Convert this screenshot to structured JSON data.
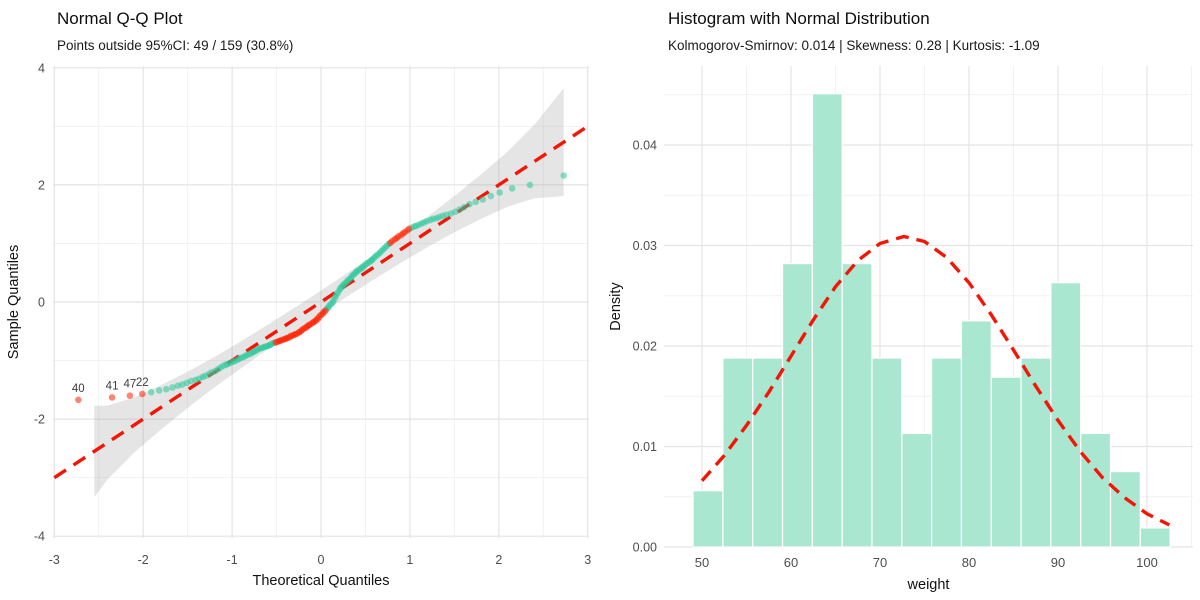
{
  "chart_data": [
    {
      "type": "scatter",
      "name": "qq-plot",
      "title": "Normal Q-Q Plot",
      "subtitle": "Points outside 95%CI: 49 / 159 (30.8%)",
      "xlabel": "Theoretical Quantiles",
      "ylabel": "Sample Quantiles",
      "xlim": [
        -3,
        3
      ],
      "ylim": [
        -4,
        4
      ],
      "x_ticks": [
        "-3",
        "-2",
        "-1",
        "0",
        "1",
        "2",
        "3"
      ],
      "x_tick_values": [
        -3,
        -2,
        -1,
        0,
        1,
        2,
        3
      ],
      "x_minor_values": [
        -2.5,
        -1.5,
        -0.5,
        0.5,
        1.5,
        2.5
      ],
      "y_ticks": [
        "-4",
        "-2",
        "0",
        "2",
        "4"
      ],
      "y_tick_values": [
        -4,
        -2,
        0,
        2,
        4
      ],
      "y_minor_values": [
        -3,
        -1,
        1,
        3
      ],
      "n_points": 159,
      "n_outside": 49,
      "pct_outside": "30.8%",
      "grid": true,
      "legend": "none",
      "reference_line": {
        "x1": -3,
        "y1": -3,
        "x2": 3,
        "y2": 3,
        "style": "dashed"
      },
      "ci_band": {
        "x": [
          -2.55,
          -2.4,
          -2.1,
          -1.8,
          -1.5,
          -1.2,
          -0.9,
          -0.6,
          -0.3,
          0.0,
          0.3,
          0.6,
          0.9,
          1.2,
          1.5,
          1.8,
          2.1,
          2.4,
          2.73
        ],
        "half_width": [
          0.78,
          0.63,
          0.47,
          0.38,
          0.31,
          0.26,
          0.23,
          0.21,
          0.2,
          0.195,
          0.2,
          0.21,
          0.23,
          0.26,
          0.31,
          0.38,
          0.47,
          0.63,
          0.92
        ]
      },
      "points_inside": [
        [
          -1.91,
          -1.54
        ],
        [
          -1.82,
          -1.51
        ],
        [
          -1.74,
          -1.49
        ],
        [
          -1.67,
          -1.46
        ],
        [
          -1.61,
          -1.43
        ],
        [
          -1.56,
          -1.41
        ],
        [
          -1.51,
          -1.38
        ],
        [
          -1.46,
          -1.35
        ],
        [
          -1.41,
          -1.33
        ],
        [
          -1.37,
          -1.31
        ],
        [
          -1.33,
          -1.28
        ],
        [
          -1.3,
          -1.26
        ],
        [
          -1.26,
          -1.23
        ],
        [
          -1.23,
          -1.2
        ],
        [
          -1.19,
          -1.18
        ],
        [
          -1.16,
          -1.15
        ],
        [
          -1.13,
          -1.12
        ],
        [
          -1.1,
          -1.09
        ],
        [
          -1.07,
          -1.07
        ],
        [
          -1.05,
          -1.06
        ],
        [
          -1.02,
          -1.04
        ],
        [
          -0.99,
          -1.02
        ],
        [
          -0.97,
          -1.01
        ],
        [
          -0.94,
          -0.99
        ],
        [
          -0.92,
          -0.97
        ],
        [
          -0.9,
          -0.95
        ],
        [
          -0.87,
          -0.94
        ],
        [
          -0.85,
          -0.92
        ],
        [
          -0.83,
          -0.9
        ],
        [
          -0.8,
          -0.89
        ],
        [
          -0.78,
          -0.87
        ],
        [
          -0.76,
          -0.85
        ],
        [
          -0.74,
          -0.84
        ],
        [
          -0.72,
          -0.82
        ],
        [
          -0.7,
          -0.8
        ],
        [
          -0.68,
          -0.79
        ],
        [
          -0.66,
          -0.78
        ],
        [
          -0.64,
          -0.77
        ],
        [
          -0.62,
          -0.76
        ],
        [
          -0.6,
          -0.75
        ],
        [
          -0.58,
          -0.74
        ],
        [
          -0.57,
          -0.73
        ],
        [
          -0.55,
          -0.71
        ],
        [
          -0.53,
          -0.7
        ],
        [
          0.06,
          -0.12
        ],
        [
          0.08,
          -0.1
        ],
        [
          0.09,
          -0.07
        ],
        [
          0.11,
          -0.04
        ],
        [
          0.13,
          -0.01
        ],
        [
          0.14,
          0.03
        ],
        [
          0.16,
          0.08
        ],
        [
          0.17,
          0.12
        ],
        [
          0.19,
          0.16
        ],
        [
          0.21,
          0.21
        ],
        [
          0.22,
          0.24
        ],
        [
          0.24,
          0.27
        ],
        [
          0.25,
          0.29
        ],
        [
          0.27,
          0.32
        ],
        [
          0.29,
          0.34
        ],
        [
          0.3,
          0.37
        ],
        [
          0.32,
          0.39
        ],
        [
          0.34,
          0.42
        ],
        [
          0.35,
          0.45
        ],
        [
          0.37,
          0.47
        ],
        [
          0.39,
          0.5
        ],
        [
          0.4,
          0.52
        ],
        [
          0.42,
          0.54
        ],
        [
          0.44,
          0.56
        ],
        [
          0.46,
          0.58
        ],
        [
          0.47,
          0.6
        ],
        [
          0.49,
          0.62
        ],
        [
          0.51,
          0.65
        ],
        [
          0.53,
          0.67
        ],
        [
          0.55,
          0.69
        ],
        [
          0.57,
          0.71
        ],
        [
          0.58,
          0.73
        ],
        [
          0.6,
          0.76
        ],
        [
          0.62,
          0.79
        ],
        [
          0.64,
          0.81
        ],
        [
          0.66,
          0.84
        ],
        [
          0.68,
          0.87
        ],
        [
          0.7,
          0.9
        ],
        [
          0.72,
          0.93
        ],
        [
          0.74,
          0.96
        ],
        [
          0.76,
          0.99
        ],
        [
          1.02,
          1.27
        ],
        [
          1.05,
          1.29
        ],
        [
          1.07,
          1.3
        ],
        [
          1.1,
          1.32
        ],
        [
          1.13,
          1.34
        ],
        [
          1.16,
          1.36
        ],
        [
          1.19,
          1.38
        ],
        [
          1.23,
          1.4
        ],
        [
          1.26,
          1.42
        ],
        [
          1.3,
          1.43
        ],
        [
          1.33,
          1.45
        ],
        [
          1.37,
          1.47
        ],
        [
          1.41,
          1.49
        ],
        [
          1.46,
          1.51
        ],
        [
          1.51,
          1.54
        ],
        [
          1.56,
          1.58
        ],
        [
          1.61,
          1.62
        ],
        [
          1.67,
          1.67
        ],
        [
          1.74,
          1.71
        ],
        [
          1.82,
          1.75
        ],
        [
          1.91,
          1.81
        ],
        [
          2.01,
          1.87
        ],
        [
          2.15,
          1.94
        ],
        [
          2.35,
          2.0
        ],
        [
          2.73,
          2.16
        ]
      ],
      "points_outside": [
        [
          -2.73,
          -1.67
        ],
        [
          -2.35,
          -1.63
        ],
        [
          -2.15,
          -1.6
        ],
        [
          -2.01,
          -1.57
        ],
        [
          -0.51,
          -0.69
        ],
        [
          -0.49,
          -0.68
        ],
        [
          -0.47,
          -0.67
        ],
        [
          -0.46,
          -0.66
        ],
        [
          -0.44,
          -0.65
        ],
        [
          -0.42,
          -0.64
        ],
        [
          -0.4,
          -0.63
        ],
        [
          -0.39,
          -0.62
        ],
        [
          -0.37,
          -0.61
        ],
        [
          -0.35,
          -0.6
        ],
        [
          -0.34,
          -0.58
        ],
        [
          -0.32,
          -0.57
        ],
        [
          -0.3,
          -0.56
        ],
        [
          -0.29,
          -0.55
        ],
        [
          -0.27,
          -0.54
        ],
        [
          -0.25,
          -0.52
        ],
        [
          -0.24,
          -0.51
        ],
        [
          -0.22,
          -0.49
        ],
        [
          -0.21,
          -0.47
        ],
        [
          -0.19,
          -0.45
        ],
        [
          -0.17,
          -0.44
        ],
        [
          -0.16,
          -0.42
        ],
        [
          -0.14,
          -0.4
        ],
        [
          -0.13,
          -0.39
        ],
        [
          -0.11,
          -0.37
        ],
        [
          -0.09,
          -0.35
        ],
        [
          -0.08,
          -0.34
        ],
        [
          -0.06,
          -0.32
        ],
        [
          -0.05,
          -0.3
        ],
        [
          -0.03,
          -0.28
        ],
        [
          -0.02,
          -0.25
        ],
        [
          0.0,
          -0.22
        ],
        [
          0.02,
          -0.2
        ],
        [
          0.03,
          -0.17
        ],
        [
          0.05,
          -0.15
        ],
        [
          0.78,
          1.01
        ],
        [
          0.8,
          1.04
        ],
        [
          0.83,
          1.07
        ],
        [
          0.85,
          1.09
        ],
        [
          0.87,
          1.12
        ],
        [
          0.9,
          1.14
        ],
        [
          0.92,
          1.17
        ],
        [
          0.94,
          1.19
        ],
        [
          0.97,
          1.22
        ],
        [
          0.99,
          1.25
        ]
      ],
      "outlier_labels": [
        {
          "text": "40",
          "x": -2.73,
          "y": -1.67
        },
        {
          "text": "41",
          "x": -2.35,
          "y": -1.63
        },
        {
          "text": "47",
          "x": -2.15,
          "y": -1.6
        },
        {
          "text": "22",
          "x": -2.01,
          "y": -1.57
        }
      ],
      "colors": {
        "inside_points": "#2bc99b",
        "outside_points": "#ff2000",
        "reference_line": "#f51505",
        "ci_band": "#999999",
        "grid_major": "#e4e4e4",
        "grid_minor": "#f1f1f1",
        "tick_label": "#4d4d4d",
        "axis_title": "#111111",
        "point_label": "#3c3c3c"
      }
    },
    {
      "type": "bar",
      "name": "histogram",
      "title": "Histogram with Normal Distribution",
      "subtitle": "Kolmogorov-Smirnov: 0.014 | Skewness: 0.28 | Kurtosis: -1.09",
      "stats": {
        "kolmogorov_smirnov": "0.014",
        "skewness": "0.28",
        "kurtosis": "-1.09"
      },
      "xlabel": "weight",
      "ylabel": "Density",
      "xlim": [
        45.7,
        105.2
      ],
      "ylim": [
        0,
        0.0478
      ],
      "x_ticks": [
        "50",
        "60",
        "70",
        "80",
        "90",
        "100"
      ],
      "x_tick_values": [
        50,
        60,
        70,
        80,
        90,
        100
      ],
      "x_minor_values": [
        55,
        65,
        75,
        85,
        95,
        105
      ],
      "y_ticks": [
        "0.00",
        "0.01",
        "0.02",
        "0.03",
        "0.04"
      ],
      "y_tick_values": [
        0,
        0.01,
        0.02,
        0.03,
        0.04
      ],
      "y_minor_values": [
        0.005,
        0.015,
        0.025,
        0.035,
        0.045
      ],
      "grid": true,
      "legend": "none",
      "bin_start": 49.0,
      "bin_width": 3.35,
      "bin_counts": [
        3,
        10,
        10,
        15,
        24,
        15,
        10,
        6,
        10,
        12,
        9,
        10,
        14,
        6,
        4,
        1
      ],
      "bin_densities": [
        0.0056,
        0.0188,
        0.0188,
        0.0282,
        0.0451,
        0.0282,
        0.0188,
        0.0113,
        0.0188,
        0.0225,
        0.0169,
        0.0188,
        0.0263,
        0.0113,
        0.0075,
        0.0019
      ],
      "normal_curve": {
        "mean": 72.7,
        "sd": 12.9,
        "points": [
          [
            50,
            0.0066
          ],
          [
            52.5,
            0.0091
          ],
          [
            55,
            0.0121
          ],
          [
            57.5,
            0.0154
          ],
          [
            60,
            0.019
          ],
          [
            62.5,
            0.0226
          ],
          [
            65,
            0.0259
          ],
          [
            67.5,
            0.0285
          ],
          [
            70,
            0.0302
          ],
          [
            72.7,
            0.0309
          ],
          [
            75,
            0.0304
          ],
          [
            77.5,
            0.0288
          ],
          [
            80,
            0.0263
          ],
          [
            82.5,
            0.0231
          ],
          [
            85,
            0.0196
          ],
          [
            87.5,
            0.016
          ],
          [
            90,
            0.0126
          ],
          [
            92.5,
            0.0095
          ],
          [
            95,
            0.0069
          ],
          [
            97.5,
            0.0049
          ],
          [
            100,
            0.0033
          ],
          [
            102.5,
            0.0022
          ]
        ]
      },
      "colors": {
        "bar_fill": "#a9e7d1",
        "bar_stroke": "#ffffff",
        "curve": "#f51505",
        "grid_major": "#e4e4e4",
        "grid_minor": "#f1f1f1",
        "tick_label": "#4d4d4d",
        "axis_title": "#111111"
      }
    }
  ]
}
